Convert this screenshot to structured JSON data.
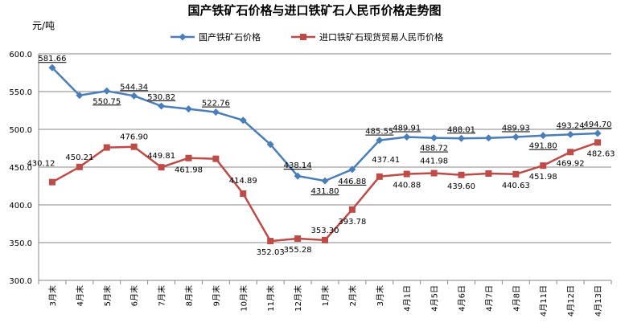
{
  "chart_data": {
    "type": "line",
    "title": "国产铁矿石价格与进口铁矿石人民币价格走势图",
    "ylabel": "元/吨",
    "xlabel": "",
    "ylim": [
      300,
      600
    ],
    "yticks": [
      "300.0",
      "350.0",
      "400.0",
      "450.0",
      "500.0",
      "550.0",
      "600.0"
    ],
    "grid": true,
    "legend": "top-right",
    "categories": [
      "3月末",
      "4月末",
      "5月末",
      "6月末",
      "7月末",
      "8月末",
      "9月末",
      "10月末",
      "11月末",
      "12月末",
      "1月末",
      "2月末",
      "3月末",
      "4月1日",
      "4月5日",
      "4月6日",
      "4月7日",
      "4月8日",
      "4月11日",
      "4月12日",
      "4月13日"
    ],
    "series": [
      {
        "name": "国产铁矿石价格",
        "color": "#4a7ebb",
        "marker": "diamond",
        "values": [
          581.66,
          545,
          550.75,
          544.34,
          530.82,
          527,
          522.76,
          512,
          480,
          438.14,
          431.8,
          446.88,
          485.55,
          489.91,
          488.72,
          488.01,
          488.5,
          489.93,
          491.8,
          493.24,
          494.7
        ],
        "labels": [
          "581.66",
          "",
          "550.75",
          "544.34",
          "530.82",
          "",
          "522.76",
          "",
          "",
          "438.14",
          "431.80",
          "446.88",
          "485.55",
          "489.91",
          "488.72",
          "488.01",
          "",
          "489.93",
          "491.80",
          "493.24",
          "494.70"
        ]
      },
      {
        "name": "进口铁矿石现货贸易人民币价格",
        "color": "#be4b48",
        "marker": "square",
        "values": [
          430.12,
          450.21,
          476,
          476.9,
          449.81,
          461.98,
          461,
          414.89,
          352.03,
          355.28,
          353.3,
          393.78,
          437.41,
          440.88,
          441.98,
          439.6,
          441.5,
          440.63,
          451.98,
          469.92,
          482.63
        ],
        "labels": [
          "430.12",
          "450.21",
          "",
          "476.90",
          "449.81",
          "461.98",
          "",
          "414.89",
          "352.03",
          "355.28",
          "353.30",
          "393.78",
          "437.41",
          "440.88",
          "441.98",
          "439.60",
          "",
          "440.63",
          "451.98",
          "469.92",
          "482.63"
        ]
      }
    ]
  }
}
